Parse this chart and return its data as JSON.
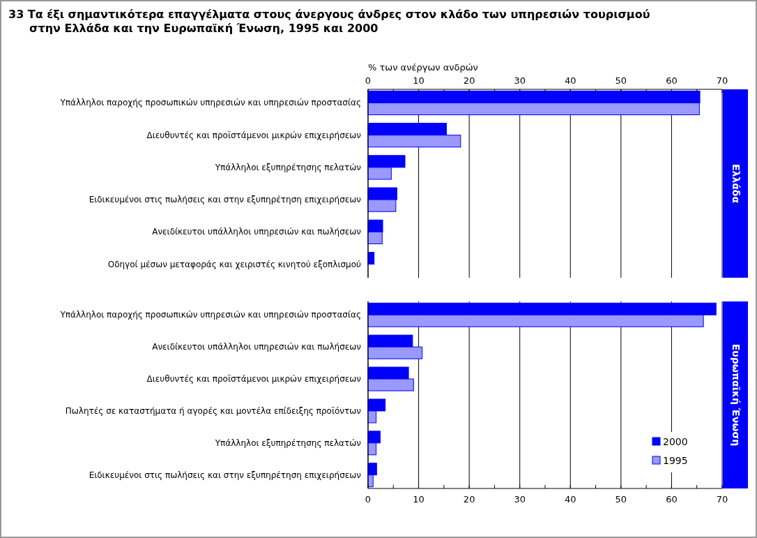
{
  "chart_data": [
    {
      "type": "bar",
      "orientation": "horizontal",
      "title": "33  Τα έξι σημαντικότερα επαγγέλματα στους άνεργους άνδρες στον κλάδο των υπηρεσιών τουρισμού στην Ελλάδα και την Ευρωπαϊκή Ένωση, 1995 και 2000",
      "subtitle": "Ελλάδα",
      "xlabel": "% των ανέργων ανδρών",
      "categories": [
        "Υπάλληλοι παροχής προσωπικών υπηρεσιών και υπηρεσιών προστασίας",
        "Διευθυντές και προϊστάμενοι μικρών επιχειρήσεων",
        "Υπάλληλοι εξυπηρέτησης πελατών",
        "Ειδικευμένοι στις πωλήσεις και στην εξυπηρέτηση επιχειρήσεων",
        "Ανειδίκευτοι υπάλληλοι υπηρεσιών και πωλήσεων",
        "Οδηγοί μέσων μεταφοράς και χειριστές κινητού εξοπλισμού"
      ],
      "series": [
        {
          "color": "#0000ff",
          "values": [
            65.6,
            15.5,
            7.3,
            5.7,
            2.9,
            1.2
          ]
        },
        {
          "color": "#9999ff",
          "values": [
            65.5,
            18.3,
            4.6,
            5.5,
            2.8,
            null
          ]
        }
      ],
      "xlim": [
        0,
        70
      ],
      "xticks": [
        0,
        {
          "value": 5,
          "label": null
        },
        10,
        {
          "value": 15,
          "label": null
        },
        20,
        {
          "value": 25,
          "label": null
        },
        30,
        {
          "value": 35,
          "label": null
        },
        40,
        {
          "value": 45,
          "label": null
        },
        50,
        {
          "value": 55,
          "label": null
        },
        60,
        {
          "value": 65,
          "label": null
        },
        70
      ],
      "grid": "x"
    },
    {
      "type": "bar",
      "orientation": "horizontal",
      "subtitle": "Ευρωπαϊκή Ένωση",
      "categories": [
        "Υπάλληλοι παροχής προσωπικών υπηρεσιών και υπηρεσιών προστασίας",
        "Ανειδίκευτοι υπάλληλοι υπηρεσιών και πωλήσεων",
        "Διευθυντές και προϊστάμενοι μικρών επιχειρήσεων",
        "Πωλητές σε καταστήματα ή αγορές και μοντέλα επίδειξης προϊόντων",
        "Υπάλληλοι εξυπηρέτησης πελατών",
        "Ειδικευμένοι στις πωλήσεις και στην εξυπηρέτηση επιχειρήσεων"
      ],
      "series": [
        {
          "name": "2000",
          "color": "#0000ff",
          "values": [
            68.8,
            8.8,
            8.0,
            3.4,
            2.4,
            1.7
          ]
        },
        {
          "name": "1995",
          "color": "#9999ff",
          "values": [
            66.3,
            10.7,
            9.0,
            1.6,
            1.6,
            1.0
          ]
        }
      ],
      "xlim": [
        0,
        70
      ],
      "xticks": [
        0,
        {
          "value": 5,
          "label": null
        },
        10,
        {
          "value": 15,
          "label": null
        },
        20,
        {
          "value": 25,
          "label": null
        },
        30,
        {
          "value": 35,
          "label": null
        },
        40,
        {
          "value": 45,
          "label": null
        },
        50,
        {
          "value": 55,
          "label": null
        },
        60,
        {
          "value": 65,
          "label": null
        },
        70
      ],
      "grid": "x",
      "legend": "bottom right"
    }
  ]
}
